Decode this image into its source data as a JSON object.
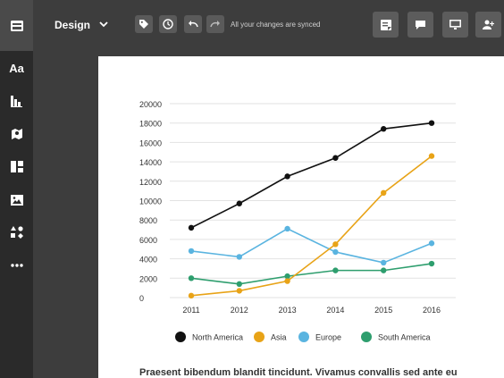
{
  "toolbar": {
    "menu_label": "Design",
    "sync_status": "All your changes are synced",
    "icons": [
      "tag-icon",
      "history-icon",
      "undo-icon",
      "redo-icon"
    ],
    "right_icons": [
      "notes-icon",
      "comment-icon",
      "present-icon",
      "share-icon"
    ]
  },
  "sidebar": {
    "text_label": "Aa",
    "items": [
      "text",
      "charts",
      "maps",
      "layout",
      "images",
      "shapes",
      "more"
    ]
  },
  "chart_data": {
    "type": "line",
    "categories": [
      "2011",
      "2012",
      "2013",
      "2014",
      "2015",
      "2016"
    ],
    "ylim": [
      0,
      20000
    ],
    "yticks": [
      "0",
      "2000",
      "4000",
      "6000",
      "8000",
      "10000",
      "12000",
      "14000",
      "16000",
      "18000",
      "20000"
    ],
    "grid": true,
    "legend_position": "bottom",
    "series": [
      {
        "name": "North America",
        "color": "#111111",
        "values": [
          7200,
          9700,
          12500,
          14400,
          17400,
          18000
        ]
      },
      {
        "name": "Asia",
        "color": "#e8a317",
        "values": [
          200,
          700,
          1700,
          5500,
          10800,
          14600
        ]
      },
      {
        "name": "Europe",
        "color": "#5ab4e0",
        "values": [
          4800,
          4200,
          7100,
          4700,
          3600,
          5600
        ]
      },
      {
        "name": "South America",
        "color": "#2e9e6e",
        "values": [
          2000,
          1400,
          2200,
          2800,
          2800,
          3500
        ]
      }
    ]
  },
  "body_text": "Praesent bibendum blandit tincidunt. Vivamus convallis sed ante eu"
}
